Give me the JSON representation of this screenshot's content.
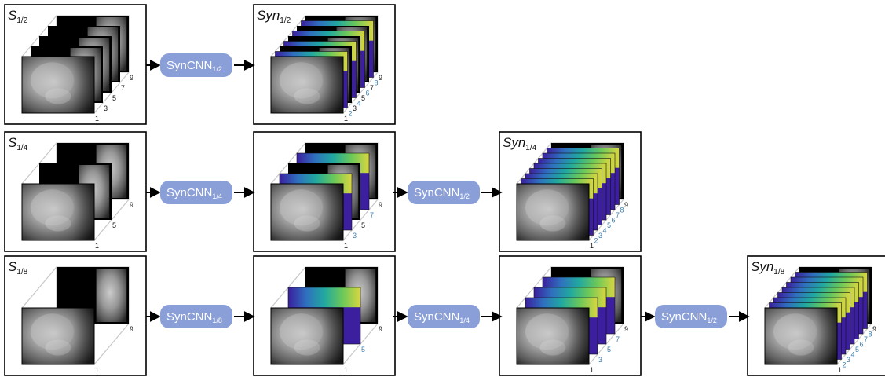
{
  "colors": {
    "network_fill": "#8a9fd8",
    "cube_edge": "#c8c8c8",
    "arrow": "#000000",
    "synth_blue": "#3f7fae",
    "viridis": [
      "#3b1f9e",
      "#2f6fbf",
      "#20a8a0",
      "#6ac85a",
      "#d9d640"
    ]
  },
  "panels": [
    {
      "id": "s12",
      "label": "S",
      "sub": "1/2",
      "italic": true,
      "type": "input",
      "images": 5,
      "numbers_black": [
        "1",
        "3",
        "5",
        "7",
        "9"
      ],
      "numbers_blue": []
    },
    {
      "id": "syn12",
      "label": "Syn",
      "sub": "1/2",
      "italic": true,
      "type": "synth",
      "images": 9,
      "numbers_black": [
        "1",
        "3",
        "5",
        "7",
        "9"
      ],
      "numbers_blue": [
        "2",
        "4",
        "6",
        "8"
      ]
    },
    {
      "id": "s14",
      "label": "S",
      "sub": "1/4",
      "italic": true,
      "type": "input",
      "images": 3,
      "numbers_black": [
        "1",
        "5",
        "9"
      ],
      "numbers_blue": []
    },
    {
      "id": "mid14",
      "label": "",
      "sub": "",
      "type": "synth",
      "images": 5,
      "numbers_black": [
        "1",
        "5",
        "9"
      ],
      "numbers_blue": [
        "3",
        "7"
      ]
    },
    {
      "id": "syn14",
      "label": "Syn",
      "sub": "1/4",
      "italic": true,
      "type": "synth",
      "images": 9,
      "numbers_black": [
        "1",
        "9"
      ],
      "numbers_blue": [
        "2",
        "3",
        "4",
        "5",
        "6",
        "7",
        "8"
      ]
    },
    {
      "id": "s18",
      "label": "S",
      "sub": "1/8",
      "italic": true,
      "type": "input",
      "images": 2,
      "numbers_black": [
        "1",
        "9"
      ],
      "numbers_blue": []
    },
    {
      "id": "mid18a",
      "label": "",
      "sub": "",
      "type": "synth",
      "images": 3,
      "numbers_black": [
        "1",
        "9"
      ],
      "numbers_blue": [
        "5"
      ]
    },
    {
      "id": "mid18b",
      "label": "",
      "sub": "",
      "type": "synth",
      "images": 5,
      "numbers_black": [
        "1",
        "9"
      ],
      "numbers_blue": [
        "3",
        "5",
        "7"
      ]
    },
    {
      "id": "syn18",
      "label": "Syn",
      "sub": "1/8",
      "italic": true,
      "type": "synth",
      "images": 9,
      "numbers_black": [
        "1",
        "9"
      ],
      "numbers_blue": [
        "2",
        "3",
        "4",
        "5",
        "6",
        "7",
        "8"
      ]
    }
  ],
  "networks": [
    {
      "id": "n1",
      "name": "SynCNN",
      "sub": "1/2"
    },
    {
      "id": "n2",
      "name": "SynCNN",
      "sub": "1/4"
    },
    {
      "id": "n3",
      "name": "SynCNN",
      "sub": "1/2"
    },
    {
      "id": "n4",
      "name": "SynCNN",
      "sub": "1/8"
    },
    {
      "id": "n5",
      "name": "SynCNN",
      "sub": "1/4"
    },
    {
      "id": "n6",
      "name": "SynCNN",
      "sub": "1/2"
    }
  ]
}
